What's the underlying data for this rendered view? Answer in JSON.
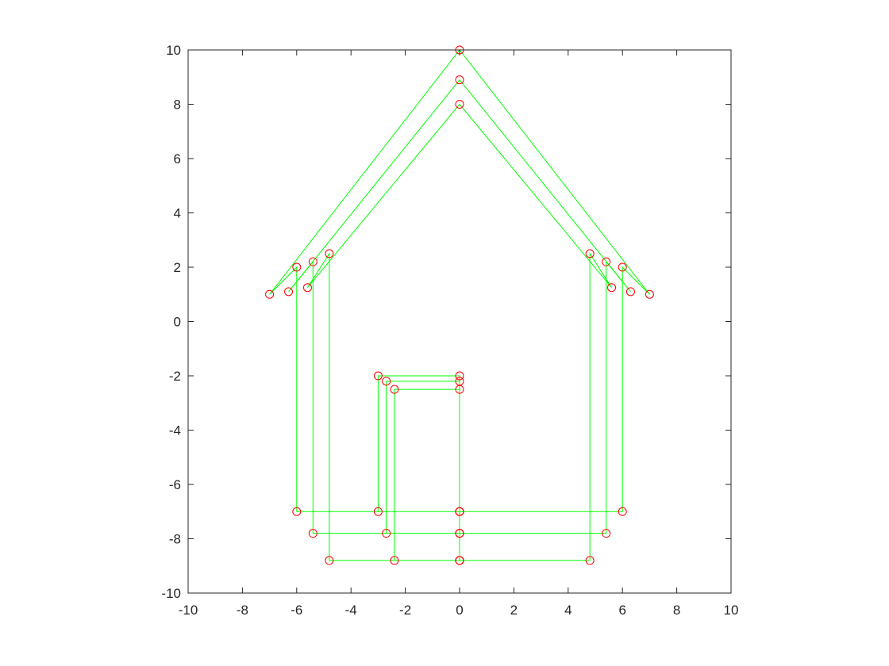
{
  "chart_data": {
    "type": "line",
    "title": "",
    "xlabel": "",
    "ylabel": "",
    "xlim": [
      -10,
      10
    ],
    "ylim": [
      -10,
      10
    ],
    "xticks": [
      -10,
      -8,
      -6,
      -4,
      -2,
      0,
      2,
      4,
      6,
      8,
      10
    ],
    "yticks": [
      -10,
      -8,
      -6,
      -4,
      -2,
      0,
      2,
      4,
      6,
      8,
      10
    ],
    "xtick_labels": [
      "-10",
      "-8",
      "-6",
      "-4",
      "-2",
      "0",
      "2",
      "4",
      "6",
      "8",
      "10"
    ],
    "ytick_labels": [
      "-10",
      "-8",
      "-6",
      "-4",
      "-2",
      "0",
      "2",
      "4",
      "6",
      "8",
      "10"
    ],
    "grid": false,
    "line_color": "#00ff00",
    "marker_color": "#ff0000",
    "marker": "circle",
    "series": [
      {
        "x": [
          0,
          0,
          -3,
          -3,
          0,
          6,
          6,
          7,
          0,
          -7,
          -6,
          -6,
          0
        ],
        "y": [
          -7,
          -2,
          -2,
          -7,
          -7,
          -7,
          2,
          1,
          10,
          1,
          2,
          -7,
          -7
        ]
      },
      {
        "x": [
          0,
          0,
          -2.7,
          -2.7,
          0,
          5.4,
          5.4,
          6.3,
          0,
          -6.3,
          -5.4,
          -5.4,
          0
        ],
        "y": [
          -7.8,
          -2.2,
          -2.2,
          -7.8,
          -7.8,
          -7.8,
          2.2,
          1.1,
          8.9,
          1.1,
          2.2,
          -7.8,
          -7.8
        ]
      },
      {
        "x": [
          0,
          0,
          -2.4,
          -2.4,
          0,
          4.8,
          4.8,
          5.6,
          0,
          -5.6,
          -4.8,
          -4.8,
          0
        ],
        "y": [
          -8.8,
          -2.5,
          -2.5,
          -8.8,
          -8.8,
          -8.8,
          2.5,
          1.25,
          8,
          1.25,
          2.5,
          -8.8,
          -8.8
        ]
      }
    ]
  }
}
